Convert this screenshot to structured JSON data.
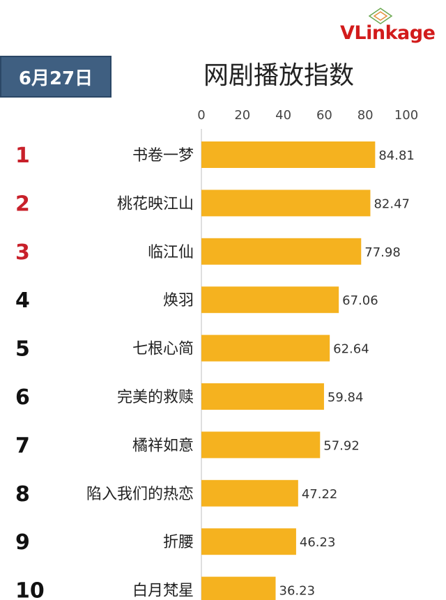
{
  "header": {
    "date": "6月27日",
    "title": "网剧播放指数",
    "logo_prefix": "VL",
    "logo_suffix": "inkage"
  },
  "colors": {
    "bar": "#f5b21f",
    "badge_bg": "#3f5f81",
    "rank_top": "#c8202a",
    "rank_other": "#111111",
    "logo_red": "#d21b1b"
  },
  "chart_data": {
    "type": "bar",
    "orientation": "horizontal",
    "categories": [
      "书卷一梦",
      "桃花映江山",
      "临江仙",
      "焕羽",
      "七根心简",
      "完美的救赎",
      "橘祥如意",
      "陷入我们的热恋",
      "折腰",
      "白月梵星"
    ],
    "ranks": [
      "1",
      "2",
      "3",
      "4",
      "5",
      "6",
      "7",
      "8",
      "9",
      "10"
    ],
    "values": [
      84.81,
      82.47,
      77.98,
      67.06,
      62.64,
      59.84,
      57.92,
      47.22,
      46.23,
      36.23
    ],
    "value_labels": [
      "84.81",
      "82.47",
      "77.98",
      "67.06",
      "62.64",
      "59.84",
      "57.92",
      "47.22",
      "46.23",
      "36.23"
    ],
    "xticks": [
      "0",
      "20",
      "40",
      "60",
      "80",
      "100"
    ],
    "xlim": [
      0,
      100
    ],
    "axis_position": "top",
    "title": "网剧播放指数"
  }
}
